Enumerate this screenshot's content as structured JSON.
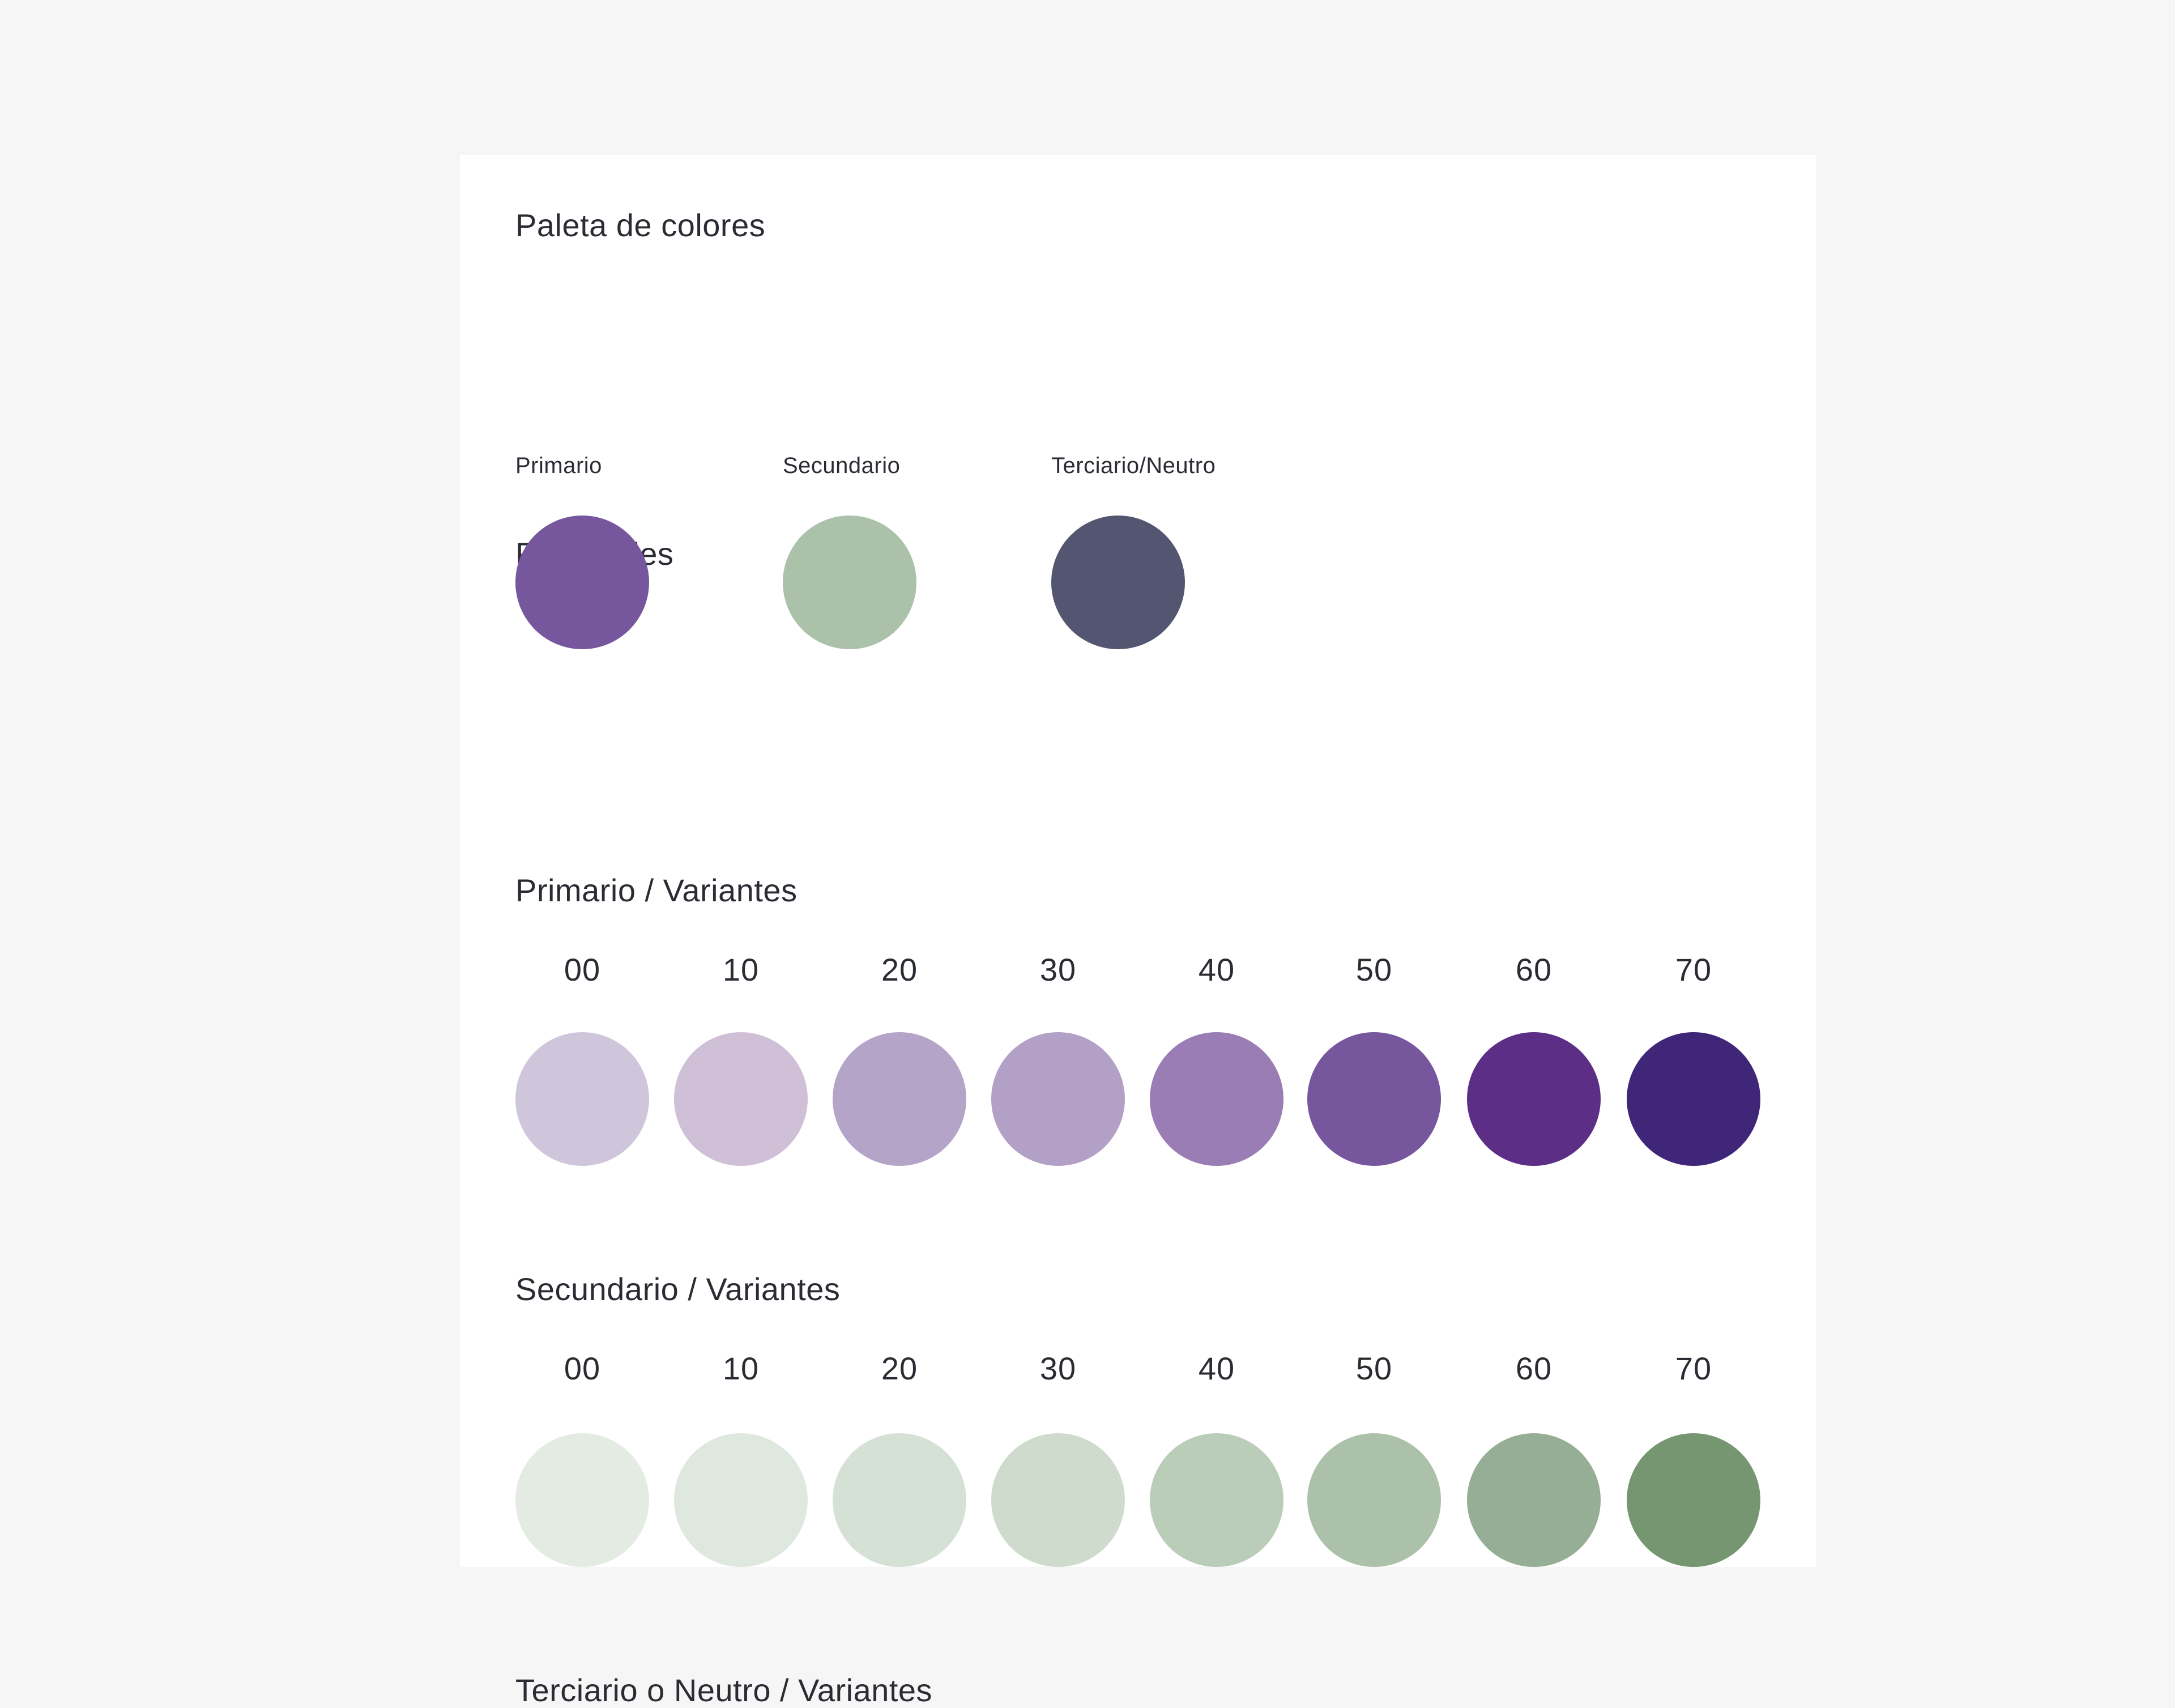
{
  "title": "Paleta de colores",
  "principales": {
    "heading": "Principales",
    "items": [
      {
        "label": "Primario",
        "color": "#76579e"
      },
      {
        "label": "Secundario",
        "color": "#abc1aa"
      },
      {
        "label": "Terciario/Neutro",
        "color": "#545570"
      }
    ]
  },
  "primario_variantes": {
    "heading": "Primario / Variantes",
    "steps": [
      {
        "label": "00",
        "color": "#d0c6dc"
      },
      {
        "label": "10",
        "color": "#cfc0d8"
      },
      {
        "label": "20",
        "color": "#b4a4c8"
      },
      {
        "label": "30",
        "color": "#b2a0c6"
      },
      {
        "label": "40",
        "color": "#9a7db4"
      },
      {
        "label": "50",
        "color": "#76579e"
      },
      {
        "label": "60",
        "color": "#5d2e86"
      },
      {
        "label": "70",
        "color": "#3f2679"
      }
    ]
  },
  "secundario_variantes": {
    "heading": "Secundario / Variantes",
    "steps": [
      {
        "label": "00",
        "color": "#e3ebe2"
      },
      {
        "label": "10",
        "color": "#dfe8de"
      },
      {
        "label": "20",
        "color": "#d6e1d5"
      },
      {
        "label": "30",
        "color": "#cfdccd"
      },
      {
        "label": "40",
        "color": "#b9cdb8"
      },
      {
        "label": "50",
        "color": "#abc1aa"
      },
      {
        "label": "60",
        "color": "#96ae95"
      },
      {
        "label": "70",
        "color": "#769571"
      }
    ]
  },
  "terciario_variantes": {
    "heading": "Terciario o Neutro / Variantes"
  }
}
